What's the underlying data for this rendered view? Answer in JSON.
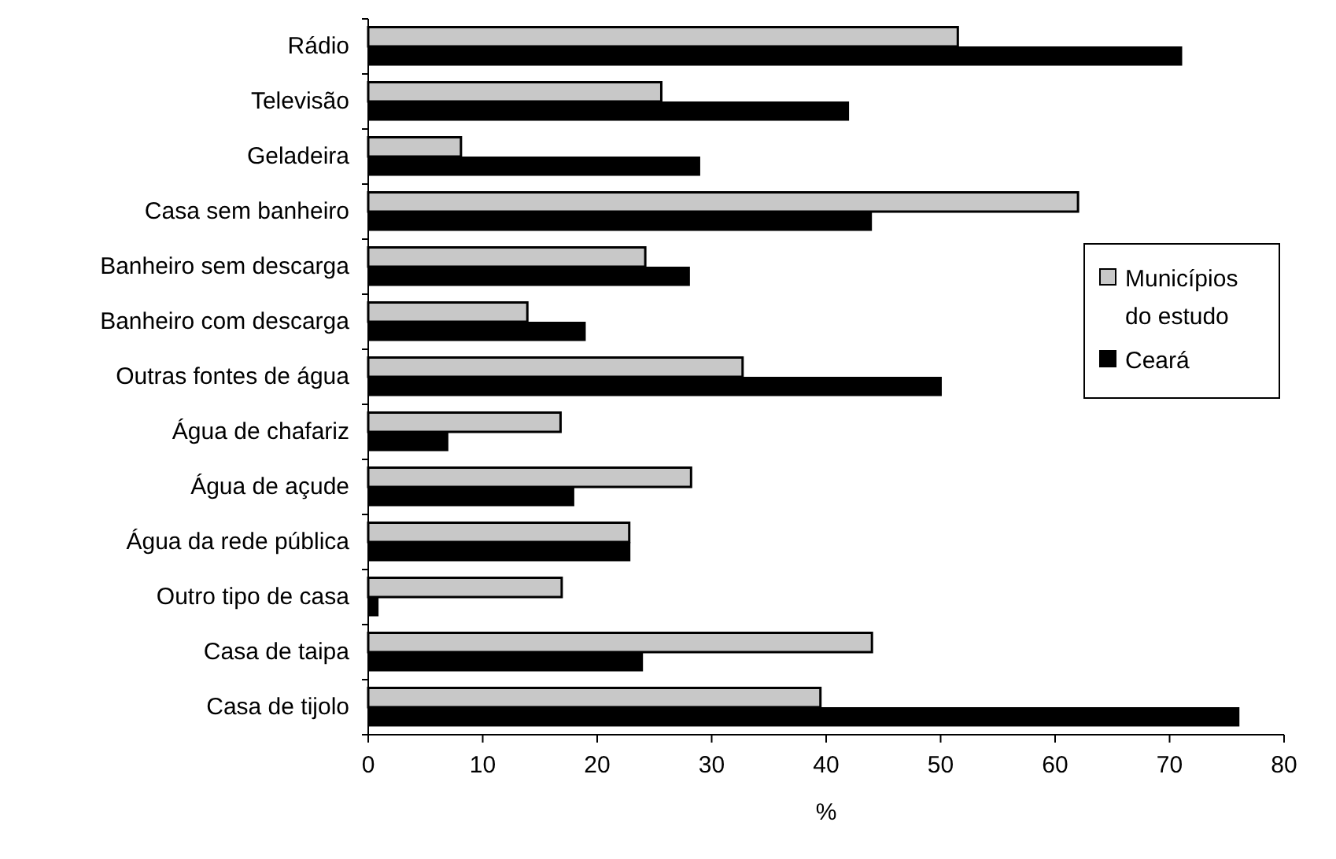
{
  "chart_data": {
    "type": "bar",
    "orientation": "horizontal",
    "xlabel": "%",
    "categories": [
      "Rádio",
      "Televisão",
      "Geladeira",
      "Casa sem banheiro",
      "Banheiro sem descarga",
      "Banheiro com descarga",
      "Outras fontes de água",
      "Água de chafariz",
      "Água de açude",
      "Água da rede pública",
      "Outro tipo de casa",
      "Casa de taipa",
      "Casa de tijolo"
    ],
    "series": [
      {
        "name": "Municípios do estudo",
        "color": "#c8c8c8",
        "values": [
          51.5,
          25.6,
          8.1,
          62,
          24.2,
          13.9,
          32.7,
          16.8,
          28.2,
          22.8,
          16.9,
          44,
          39.5
        ]
      },
      {
        "name": "Ceará",
        "color": "#000000",
        "values": [
          71.1,
          42,
          29,
          44,
          28.1,
          19,
          50.1,
          7,
          18,
          22.9,
          0.9,
          24,
          76.1
        ]
      }
    ],
    "xlim": [
      0,
      80
    ],
    "xticks": [
      0,
      10,
      20,
      30,
      40,
      50,
      60,
      70,
      80
    ],
    "grid": false,
    "legend": "right"
  }
}
